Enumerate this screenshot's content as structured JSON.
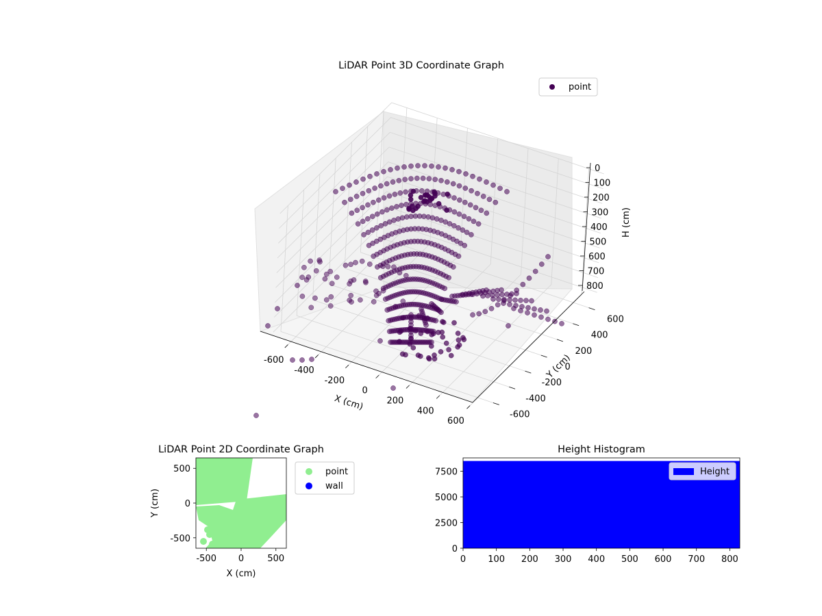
{
  "chart_data": [
    {
      "type": "scatter3d",
      "title": "LiDAR Point 3D Coordinate Graph",
      "xlabel": "X (cm)",
      "ylabel": "Y (cm)",
      "zlabel": "H (cm)",
      "xlim": [
        -700,
        700
      ],
      "ylim": [
        -700,
        700
      ],
      "zlim": [
        850,
        0
      ],
      "xticks": [
        "-600",
        "-400",
        "-200",
        "0",
        "200",
        "400",
        "600"
      ],
      "yticks": [
        "-600",
        "-400",
        "-200",
        "0",
        "200",
        "400",
        "600"
      ],
      "zticks": [
        "0",
        "100",
        "200",
        "300",
        "400",
        "500",
        "600",
        "700",
        "800"
      ],
      "grid": true,
      "legend": {
        "position": "top-right",
        "entries": [
          {
            "label": "point",
            "color": "#440154"
          }
        ]
      },
      "marker_color": "#440154"
    },
    {
      "type": "scatter",
      "title": "LiDAR Point 2D Coordinate Graph",
      "xlabel": "X (cm)",
      "ylabel": "Y (cm)",
      "xlim": [
        -650,
        650
      ],
      "ylim": [
        -650,
        650
      ],
      "xticks": [
        "-500",
        "0",
        "500"
      ],
      "yticks": [
        "500",
        "0",
        "-500"
      ],
      "legend": {
        "position": "outside-right",
        "entries": [
          {
            "label": "point",
            "color": "#90ee90"
          },
          {
            "label": "wall",
            "color": "#0000ff"
          }
        ]
      }
    },
    {
      "type": "bar",
      "title": "Height Histogram",
      "xlim": [
        0,
        830
      ],
      "ylim": [
        0,
        8800
      ],
      "xticks": [
        "0",
        "100",
        "200",
        "300",
        "400",
        "500",
        "600",
        "700",
        "800"
      ],
      "yticks": [
        "0",
        "2500",
        "5000",
        "7500"
      ],
      "series": [
        {
          "name": "Height",
          "color": "#0000ff",
          "value": 8500,
          "range": [
            0,
            830
          ]
        }
      ],
      "legend": {
        "position": "top-right"
      }
    }
  ]
}
